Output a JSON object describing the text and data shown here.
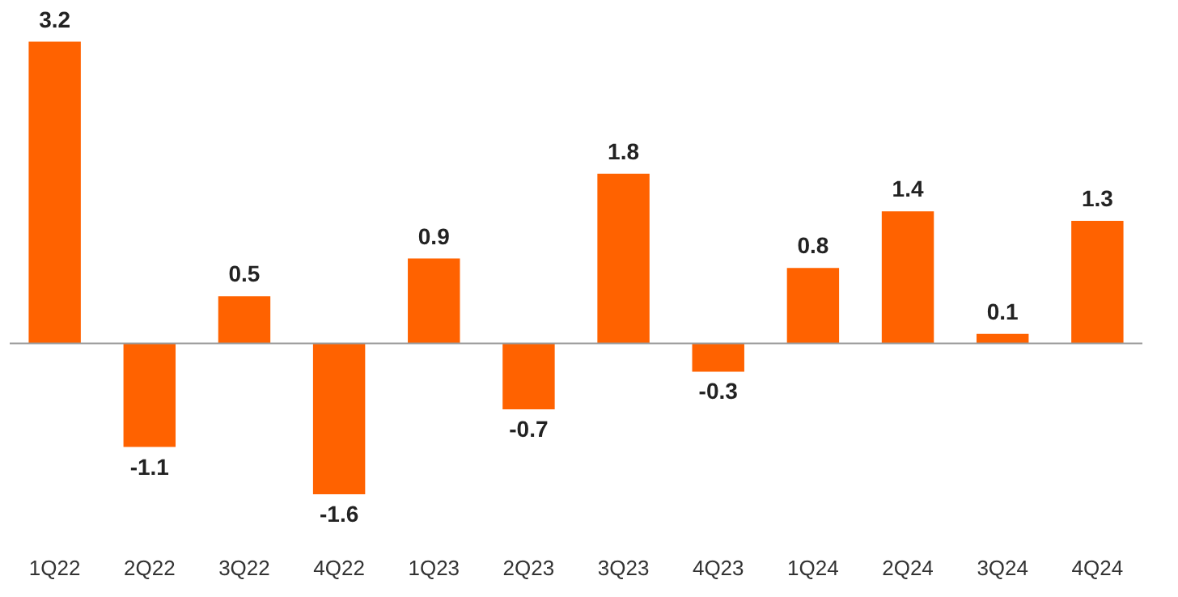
{
  "chart_data": {
    "type": "bar",
    "categories": [
      "1Q22",
      "2Q22",
      "3Q22",
      "4Q22",
      "1Q23",
      "2Q23",
      "3Q23",
      "4Q23",
      "1Q24",
      "2Q24",
      "3Q24",
      "4Q24"
    ],
    "values": [
      3.2,
      -1.1,
      0.5,
      -1.6,
      0.9,
      -0.7,
      1.8,
      -0.3,
      0.8,
      1.4,
      0.1,
      1.3
    ],
    "color": "#ff6200",
    "data_labels": true
  }
}
